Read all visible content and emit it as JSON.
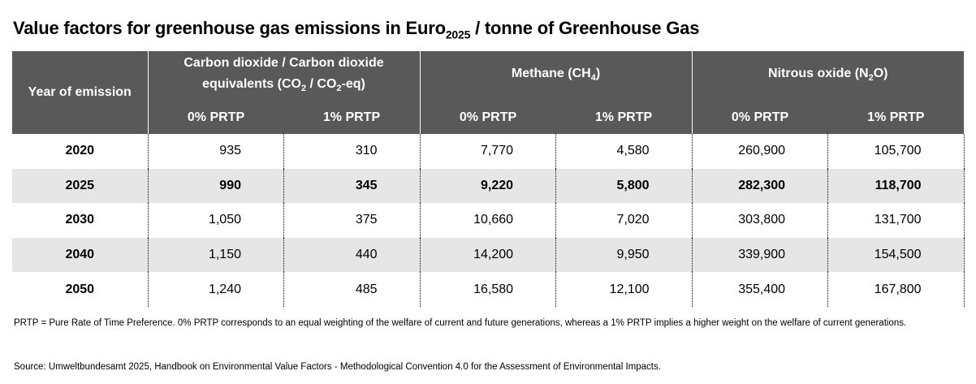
{
  "title": {
    "main": "Value factors for greenhouse gas emissions in Euro",
    "sub": "2025",
    "tail": " / tonne of Greenhouse Gas"
  },
  "header": {
    "year": "Year of emission",
    "co2": {
      "a": "Carbon dioxide / Carbon dioxide equivalents (CO",
      "s1": "2",
      "b": " / CO",
      "s2": "2",
      "c": "-eq)"
    },
    "ch4": {
      "a": "Methane (CH",
      "s": "4",
      "b": ")"
    },
    "n2o": {
      "a": "Nitrous oxide (N",
      "s": "2",
      "b": "O)"
    },
    "sub": [
      "0% PRTP",
      "1% PRTP",
      "0% PRTP",
      "1% PRTP",
      "0% PRTP",
      "1% PRTP"
    ]
  },
  "rows": [
    {
      "year": "2020",
      "values": [
        "935",
        "310",
        "7,770",
        "4,580",
        "260,900",
        "105,700"
      ]
    },
    {
      "year": "2025",
      "values": [
        "990",
        "345",
        "9,220",
        "5,800",
        "282,300",
        "118,700"
      ]
    },
    {
      "year": "2030",
      "values": [
        "1,050",
        "375",
        "10,660",
        "7,020",
        "303,800",
        "131,700"
      ]
    },
    {
      "year": "2040",
      "values": [
        "1,150",
        "440",
        "14,200",
        "9,950",
        "339,900",
        "154,500"
      ]
    },
    {
      "year": "2050",
      "values": [
        "1,240",
        "485",
        "16,580",
        "12,100",
        "355,400",
        "167,800"
      ]
    }
  ],
  "note": "PRTP = Pure Rate of Time Preference. 0% PRTP corresponds to an equal weighting of the welfare of current  and future generations, whereas a 1% PRTP implies a higher weight on the welfare of current generations.",
  "source": "Source: Umweltbundesamt 2025, Handbook on Environmental Value Factors - Methodological Convention 4.0 for the Assessment of Environmental Impacts."
}
